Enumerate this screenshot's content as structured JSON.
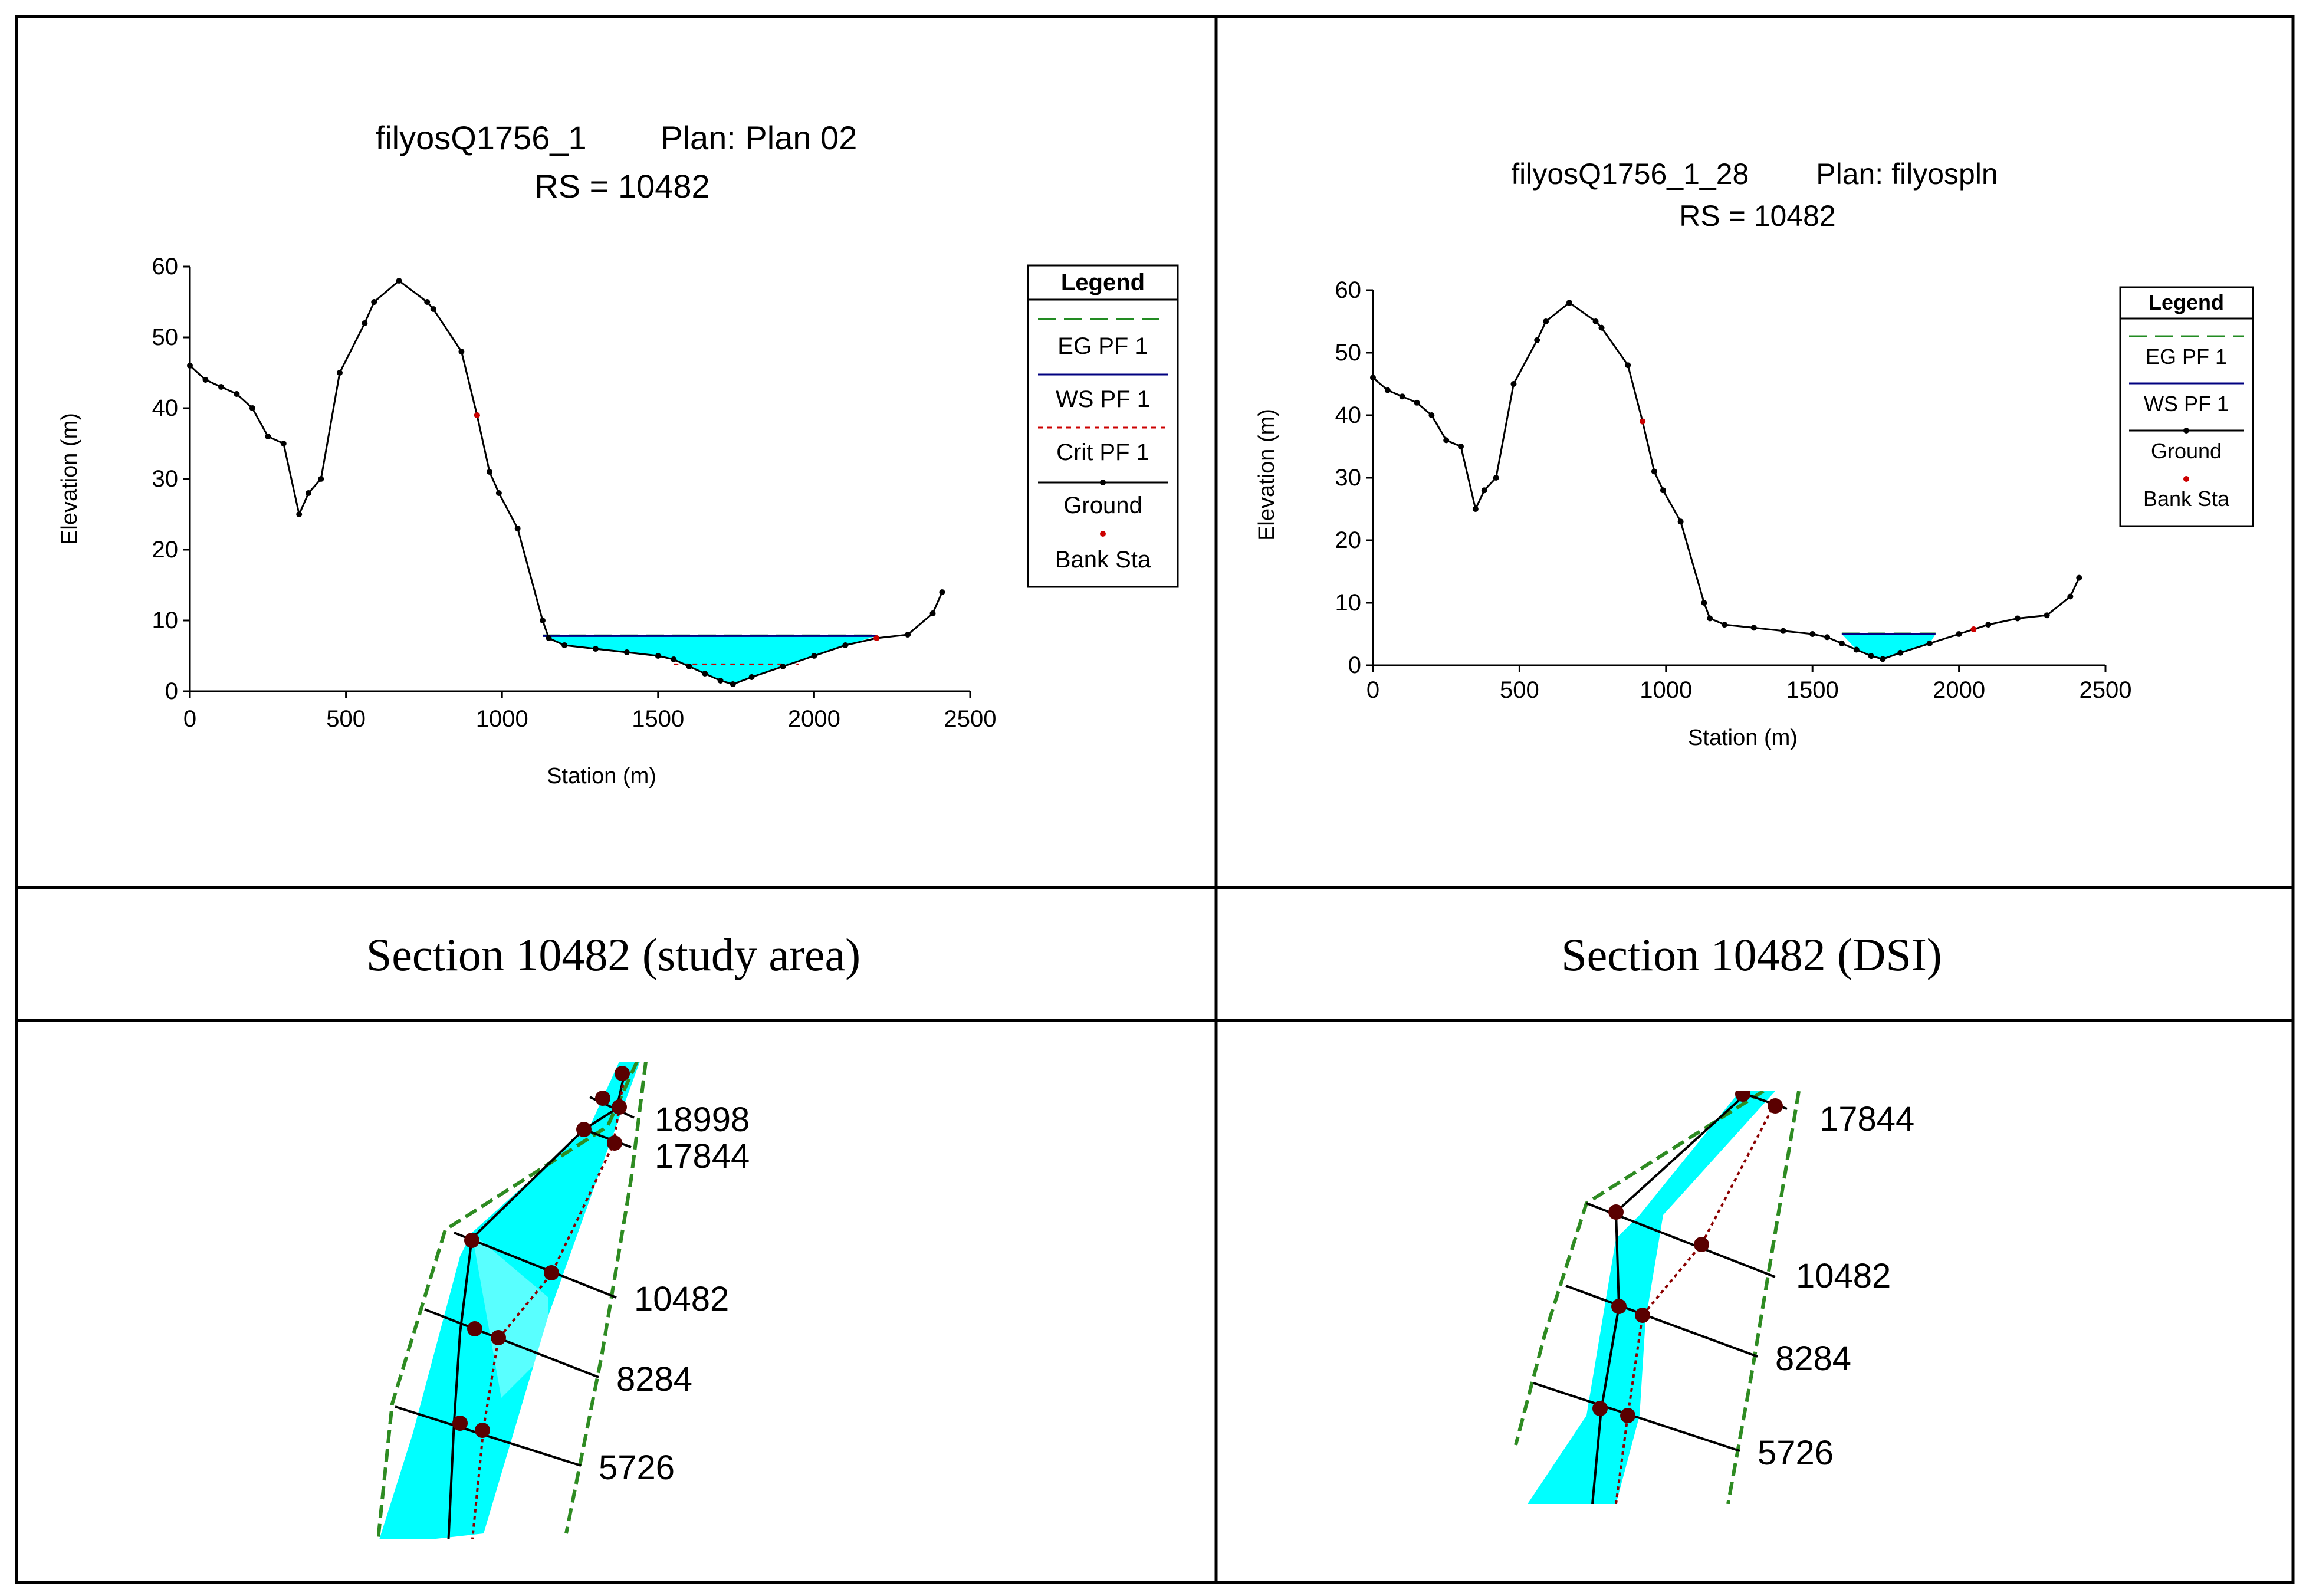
{
  "captions": {
    "left": "Section 10482 (study area)",
    "right": "Section 10482 (DSI)"
  },
  "chart_data": [
    {
      "type": "line",
      "title_line1_name": "filyosQ1756_1",
      "title_line1_plan": "Plan: Plan 02",
      "title_line2": "RS = 10482",
      "xlabel": "Station (m)",
      "ylabel": "Elevation (m)",
      "xlim": [
        0,
        2500
      ],
      "ylim": [
        0,
        60
      ],
      "xticks": [
        "0",
        "500",
        "1000",
        "1500",
        "2000",
        "2500"
      ],
      "yticks": [
        "0",
        "10",
        "20",
        "30",
        "40",
        "50",
        "60"
      ],
      "legend": {
        "title": "Legend",
        "items": [
          "EG PF 1",
          "WS PF 1",
          "Crit PF 1",
          "Ground",
          "Bank Sta"
        ]
      },
      "ground": {
        "x": [
          0,
          50,
          100,
          150,
          200,
          250,
          300,
          350,
          380,
          420,
          480,
          560,
          590,
          670,
          760,
          780,
          870,
          920,
          960,
          990,
          1050,
          1130,
          1150,
          1200,
          1300,
          1400,
          1500,
          1550,
          1600,
          1650,
          1700,
          1740,
          1800,
          1900,
          2000,
          2100,
          2200,
          2300,
          2380,
          2410
        ],
        "y": [
          46,
          44,
          43,
          42,
          40,
          36,
          35,
          25,
          28,
          30,
          45,
          52,
          55,
          58,
          55,
          54,
          48,
          39,
          31,
          28,
          23,
          10,
          7.5,
          6.5,
          6,
          5.5,
          5,
          4.5,
          3.5,
          2.5,
          1.5,
          1,
          2,
          3.5,
          5,
          6.5,
          7.5,
          8,
          11,
          14
        ]
      },
      "bank_stations": [
        920,
        2200
      ],
      "water_surface": {
        "x_start": 1130,
        "x_end": 2200,
        "elevation": 7.8
      },
      "critical_depth": {
        "x_start": 1550,
        "x_end": 1950,
        "elevation": 3.8
      },
      "energy_grade": {
        "elevation": 7.9
      }
    },
    {
      "type": "line",
      "title_line1_name": "filyosQ1756_1_28",
      "title_line1_plan": "Plan: filyospln",
      "title_line2": "RS = 10482",
      "xlabel": "Station (m)",
      "ylabel": "Elevation (m)",
      "xlim": [
        0,
        2500
      ],
      "ylim": [
        0,
        60
      ],
      "xticks": [
        "0",
        "500",
        "1000",
        "1500",
        "2000",
        "2500"
      ],
      "yticks": [
        "0",
        "10",
        "20",
        "30",
        "40",
        "50",
        "60"
      ],
      "legend": {
        "title": "Legend",
        "items": [
          "EG PF 1",
          "WS PF 1",
          "Ground",
          "Bank Sta"
        ]
      },
      "ground": {
        "x": [
          0,
          50,
          100,
          150,
          200,
          250,
          300,
          350,
          380,
          420,
          480,
          560,
          590,
          670,
          760,
          780,
          870,
          920,
          960,
          990,
          1050,
          1130,
          1150,
          1200,
          1300,
          1400,
          1500,
          1550,
          1600,
          1650,
          1700,
          1740,
          1800,
          1900,
          2000,
          2100,
          2200,
          2300,
          2380,
          2410
        ],
        "y": [
          46,
          44,
          43,
          42,
          40,
          36,
          35,
          25,
          28,
          30,
          45,
          52,
          55,
          58,
          55,
          54,
          48,
          39,
          31,
          28,
          23,
          10,
          7.5,
          6.5,
          6,
          5.5,
          5,
          4.5,
          3.5,
          2.5,
          1.5,
          1,
          2,
          3.5,
          5,
          6.5,
          7.5,
          8,
          11,
          14
        ]
      },
      "bank_stations": [
        920,
        2050
      ],
      "water_surface": {
        "x_start": 1600,
        "x_end": 1920,
        "elevation": 5
      },
      "energy_grade": {
        "elevation": 5.1
      }
    }
  ],
  "maps": {
    "left_labels": [
      "18998",
      "17844",
      "10482",
      "8284",
      "5726"
    ],
    "right_labels": [
      "17844",
      "10482",
      "8284",
      "5726"
    ]
  }
}
